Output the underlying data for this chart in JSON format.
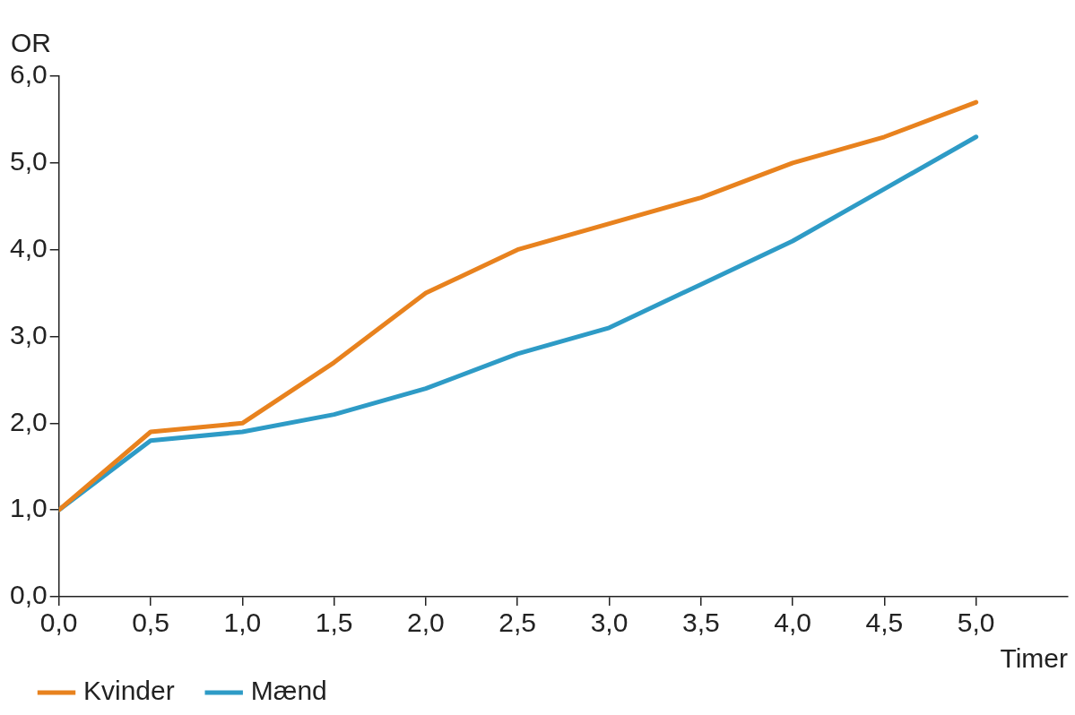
{
  "chart_data": {
    "type": "line",
    "xlabel": "Timer",
    "ylabel": "OR",
    "x": [
      0,
      0.5,
      1,
      1.5,
      2,
      2.5,
      3,
      3.5,
      4,
      4.5,
      5
    ],
    "series": [
      {
        "name": "Kvinder",
        "color": "#e8821e",
        "values": [
          1.0,
          1.9,
          2.0,
          2.7,
          3.5,
          4.0,
          4.3,
          4.6,
          5.0,
          5.3,
          5.7
        ]
      },
      {
        "name": "Mænd",
        "color": "#2e9bc6",
        "values": [
          1.0,
          1.8,
          1.9,
          2.1,
          2.4,
          2.8,
          3.1,
          3.6,
          4.1,
          4.7,
          5.3
        ]
      }
    ],
    "xlim": [
      0,
      5.5
    ],
    "xticks": [
      {
        "value": 0,
        "label": "0,0"
      },
      {
        "value": 0.5,
        "label": "0,5"
      },
      {
        "value": 1,
        "label": "1,0"
      },
      {
        "value": 1.5,
        "label": "1,5"
      },
      {
        "value": 2,
        "label": "2,0"
      },
      {
        "value": 2.5,
        "label": "2,5"
      },
      {
        "value": 3,
        "label": "3,0"
      },
      {
        "value": 3.5,
        "label": "3,5"
      },
      {
        "value": 4,
        "label": "4,0"
      },
      {
        "value": 4.5,
        "label": "4,5"
      },
      {
        "value": 5,
        "label": "5,0"
      }
    ],
    "ylim": [
      0,
      6
    ],
    "yticks": [
      {
        "value": 0,
        "label": "0,0"
      },
      {
        "value": 1,
        "label": "1,0"
      },
      {
        "value": 2,
        "label": "2,0"
      },
      {
        "value": 3,
        "label": "3,0"
      },
      {
        "value": 4,
        "label": "4,0"
      },
      {
        "value": 5,
        "label": "5,0"
      },
      {
        "value": 6,
        "label": "6,0"
      }
    ],
    "grid": false,
    "legend": "bottom left",
    "marker": "none",
    "line_style": "solid"
  }
}
